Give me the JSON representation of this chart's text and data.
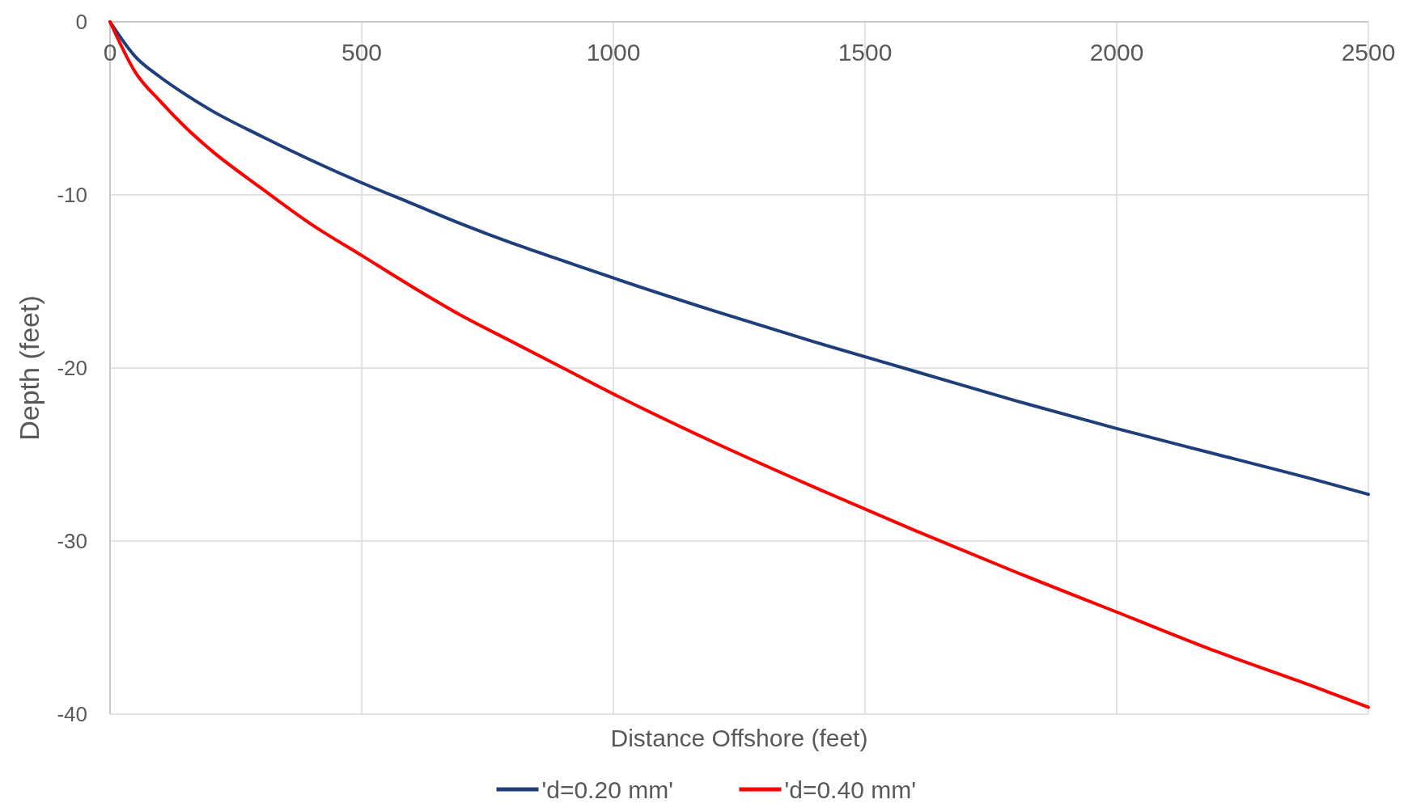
{
  "chart_data": {
    "type": "line",
    "xlabel": "Distance Offshore (feet)",
    "ylabel": "Depth (feet)",
    "x": [
      0,
      50,
      100,
      150,
      200,
      300,
      400,
      500,
      600,
      700,
      800,
      900,
      1000,
      1200,
      1400,
      1600,
      1800,
      2000,
      2200,
      2400,
      2500
    ],
    "series": [
      {
        "name": "'d=0.20 mm'",
        "color": "#1f3f7a",
        "values": [
          0,
          -2.0,
          -3.2,
          -4.2,
          -5.1,
          -6.6,
          -8.0,
          -9.3,
          -10.5,
          -11.7,
          -12.8,
          -13.8,
          -14.8,
          -16.7,
          -18.5,
          -20.2,
          -21.9,
          -23.5,
          -25.0,
          -26.5,
          -27.3
        ]
      },
      {
        "name": "'d=0.40 mm'",
        "color": "#ff0000",
        "values": [
          0,
          -2.9,
          -4.6,
          -6.1,
          -7.4,
          -9.6,
          -11.7,
          -13.5,
          -15.3,
          -17.0,
          -18.5,
          -20.0,
          -21.5,
          -24.3,
          -26.9,
          -29.4,
          -31.8,
          -34.1,
          -36.4,
          -38.5,
          -39.6
        ]
      }
    ],
    "xlim": [
      0,
      2500
    ],
    "xticks": [
      0,
      500,
      1000,
      1500,
      2000,
      2500
    ],
    "ylim": [
      -40,
      0
    ],
    "yticks": [
      -40,
      -30,
      -20,
      -10,
      0
    ],
    "grid": true,
    "legend": "bottom",
    "marker": "none",
    "line_style": "solid"
  }
}
